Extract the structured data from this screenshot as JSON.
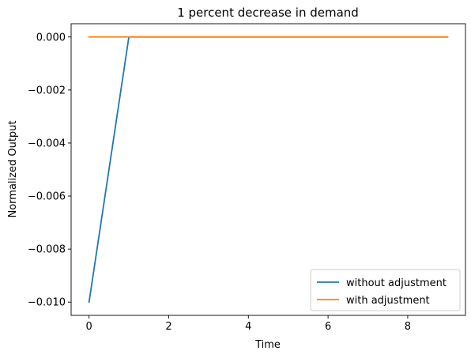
{
  "chart_data": {
    "type": "line",
    "title": "1 percent decrease in demand",
    "xlabel": "Time",
    "ylabel": "Normalized Output",
    "xlim": [
      -0.45,
      9.45
    ],
    "ylim": [
      -0.0105,
      0.0005
    ],
    "xticks": [
      0,
      2,
      4,
      6,
      8
    ],
    "xtick_labels": [
      "0",
      "2",
      "4",
      "6",
      "8"
    ],
    "yticks": [
      0.0,
      -0.002,
      -0.004,
      -0.006,
      -0.008,
      -0.01
    ],
    "ytick_labels": [
      "0.000",
      "−0.002",
      "−0.004",
      "−0.006",
      "−0.008",
      "−0.010"
    ],
    "grid": false,
    "legend_position": "lower-right",
    "series": [
      {
        "name": "without adjustment",
        "color": "#1f77b4",
        "x": [
          0,
          1,
          2,
          3,
          4,
          5,
          6,
          7,
          8,
          9
        ],
        "y": [
          -0.01,
          0,
          0,
          0,
          0,
          0,
          0,
          0,
          0,
          0
        ]
      },
      {
        "name": "with adjustment",
        "color": "#ff7f0e",
        "x": [
          0,
          1,
          2,
          3,
          4,
          5,
          6,
          7,
          8,
          9
        ],
        "y": [
          0,
          0,
          0,
          0,
          0,
          0,
          0,
          0,
          0,
          0
        ]
      }
    ]
  }
}
